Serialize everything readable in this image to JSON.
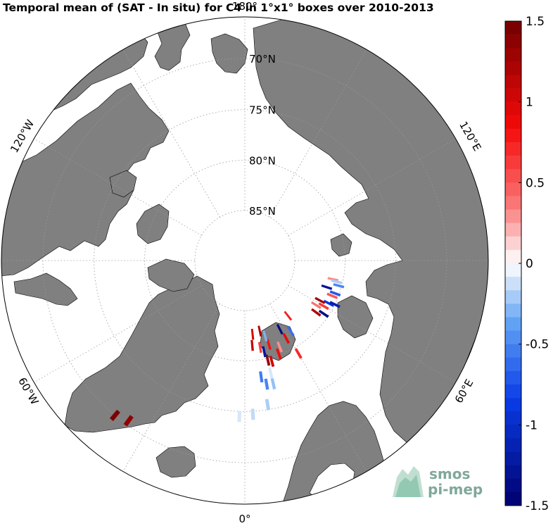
{
  "title": "Temporal mean of (SAT - In situ) for C4 in 1°x1° boxes over 2010-2013",
  "chart_data": {
    "type": "heatmap",
    "projection": "north-polar-stereographic",
    "latitude_labels": [
      "70°N",
      "75°N",
      "80°N",
      "85°N"
    ],
    "longitude_labels": [
      "180°",
      "120°W",
      "120°E",
      "60°W",
      "60°E",
      "0°"
    ],
    "colorbar": {
      "min": -1.5,
      "max": 1.5,
      "ticks": [
        -1.5,
        -1,
        -0.5,
        0,
        0.5,
        1,
        1.5
      ],
      "tick_labels": [
        "-1.5",
        "-1",
        "-0.5",
        "0",
        "0.5",
        "1",
        "1.5"
      ],
      "cmap": "blue-white-red"
    },
    "land_color": "#808080",
    "grid": true,
    "boxes": [
      {
        "lon": -40,
        "lat": 70,
        "value": 1.45
      },
      {
        "lon": -36,
        "lat": 70.4,
        "value": 1.35
      },
      {
        "lon": -2,
        "lat": 74.5,
        "value": -0.1
      },
      {
        "lon": 3,
        "lat": 74.7,
        "value": -0.15
      },
      {
        "lon": 9,
        "lat": 75.5,
        "value": -0.2
      },
      {
        "lon": 10,
        "lat": 77.5,
        "value": -0.5
      },
      {
        "lon": 13,
        "lat": 77.4,
        "value": -0.25
      },
      {
        "lon": 8,
        "lat": 78.3,
        "value": -0.55
      },
      {
        "lon": 13,
        "lat": 78.5,
        "value": -0.1
      },
      {
        "lon": 15,
        "lat": 79.6,
        "value": 1.05
      },
      {
        "lon": 13,
        "lat": 79.8,
        "value": 1.3
      },
      {
        "lon": 12,
        "lat": 80.7,
        "value": -1.25
      },
      {
        "lon": 10,
        "lat": 81.2,
        "value": 0.6
      },
      {
        "lon": 20,
        "lat": 80.1,
        "value": 0.85
      },
      {
        "lon": 22,
        "lat": 80.7,
        "value": 0.3
      },
      {
        "lon": 16,
        "lat": 81.3,
        "value": 0.8
      },
      {
        "lon": 5,
        "lat": 81.5,
        "value": 1.1
      },
      {
        "lon": 28,
        "lat": 81.2,
        "value": 0.9
      },
      {
        "lon": 30,
        "lat": 79.3,
        "value": 0.7
      },
      {
        "lon": 27,
        "lat": 82.3,
        "value": -1.4
      },
      {
        "lon": 33,
        "lat": 81.6,
        "value": -0.6
      },
      {
        "lon": 38,
        "lat": 83.0,
        "value": 0.75
      },
      {
        "lon": 12,
        "lat": 82.8,
        "value": 1.2
      },
      {
        "lon": 6,
        "lat": 82.6,
        "value": 1.0
      },
      {
        "lon": 15,
        "lat": 82.2,
        "value": -0.3
      },
      {
        "lon": 54,
        "lat": 81.2,
        "value": 1.2
      },
      {
        "lon": 56,
        "lat": 80.5,
        "value": -1.35
      },
      {
        "lon": 60,
        "lat": 80.9,
        "value": 0.65
      },
      {
        "lon": 63,
        "lat": 80.6,
        "value": -0.9
      },
      {
        "lon": 58,
        "lat": 81.6,
        "value": 0.4
      },
      {
        "lon": 62,
        "lat": 81.5,
        "value": 1.3
      },
      {
        "lon": 64,
        "lat": 80.0,
        "value": -1.15
      },
      {
        "lon": 70,
        "lat": 80.4,
        "value": -0.7
      },
      {
        "lon": 72,
        "lat": 81.4,
        "value": -1.3
      },
      {
        "lon": 75,
        "lat": 80.3,
        "value": -0.5
      },
      {
        "lon": 78,
        "lat": 81.0,
        "value": 0.3
      },
      {
        "lon": 77,
        "lat": 80.6,
        "value": -0.2
      },
      {
        "lon": 68,
        "lat": 80.6,
        "value": 0.5
      }
    ]
  },
  "logo": {
    "line1": "smos",
    "line2": "pi-mep"
  }
}
